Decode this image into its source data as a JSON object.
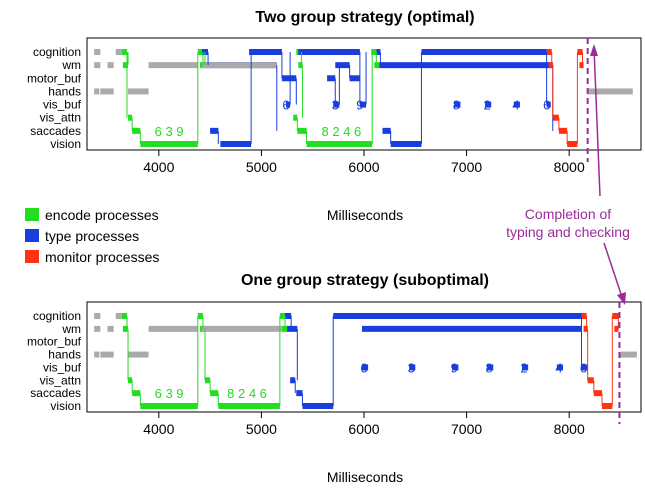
{
  "chart_data": [
    {
      "type": "timeline",
      "title": "Two group strategy (optimal)",
      "xlabel": "Milliseconds",
      "xlim": [
        3300,
        8700
      ],
      "xticks": [
        4000,
        5000,
        6000,
        7000,
        8000
      ],
      "lanes": [
        "cognition",
        "wm",
        "motor_buf",
        "hands",
        "vis_buf",
        "vis_attn",
        "saccades",
        "vision"
      ],
      "series": [
        {
          "name": "encode processes",
          "color": "#22dd22",
          "segments": [
            {
              "lane": "wm",
              "x": [
                3650,
                3700
              ]
            },
            {
              "lane": "cognition",
              "x": [
                3640,
                3690
              ]
            },
            {
              "lane": "vis_attn",
              "x": [
                3700,
                3740
              ]
            },
            {
              "lane": "saccades",
              "x": [
                3740,
                3820
              ]
            },
            {
              "lane": "vision",
              "x": [
                3820,
                4380
              ]
            },
            {
              "lane": "cognition",
              "x": [
                4380,
                4430
              ]
            },
            {
              "lane": "wm",
              "x": [
                4400,
                4450
              ]
            },
            {
              "lane": "cognition",
              "x": [
                5340,
                5390
              ]
            },
            {
              "lane": "wm",
              "x": [
                5360,
                5400
              ]
            },
            {
              "lane": "vis_attn",
              "x": [
                5310,
                5350
              ]
            },
            {
              "lane": "saccades",
              "x": [
                5350,
                5440
              ]
            },
            {
              "lane": "vision",
              "x": [
                5440,
                6080
              ]
            },
            {
              "lane": "cognition",
              "x": [
                6070,
                6120
              ]
            },
            {
              "lane": "wm",
              "x": [
                6100,
                6150
              ]
            }
          ]
        },
        {
          "name": "type processes",
          "color": "#1a3ddd",
          "segments": [
            {
              "lane": "cognition",
              "x": [
                4420,
                4480
              ]
            },
            {
              "lane": "wm",
              "x": [
                4450,
                5150
              ]
            },
            {
              "lane": "saccades",
              "x": [
                4500,
                4580
              ]
            },
            {
              "lane": "vision",
              "x": [
                4600,
                4900
              ]
            },
            {
              "lane": "cognition",
              "x": [
                4880,
                5200
              ]
            },
            {
              "lane": "motor_buf",
              "x": [
                5200,
                5340
              ]
            },
            {
              "lane": "vis_buf",
              "x": [
                5240,
                5280
              ]
            },
            {
              "lane": "cognition",
              "x": [
                5360,
                5960
              ]
            },
            {
              "lane": "motor_buf",
              "x": [
                5640,
                5720
              ]
            },
            {
              "lane": "vis_buf",
              "x": [
                5700,
                5760
              ]
            },
            {
              "lane": "wm",
              "x": [
                5720,
                5860
              ]
            },
            {
              "lane": "motor_buf",
              "x": [
                5860,
                5960
              ]
            },
            {
              "lane": "vis_buf",
              "x": [
                5960,
                6020
              ]
            },
            {
              "lane": "cognition",
              "x": [
                6120,
                6160
              ]
            },
            {
              "lane": "wm",
              "x": [
                6150,
                7840
              ]
            },
            {
              "lane": "saccades",
              "x": [
                6180,
                6260
              ]
            },
            {
              "lane": "vision",
              "x": [
                6260,
                6560
              ]
            },
            {
              "lane": "cognition",
              "x": [
                6560,
                7780
              ]
            },
            {
              "lane": "vis_buf",
              "x": [
                6880,
                6940
              ]
            },
            {
              "lane": "vis_buf",
              "x": [
                7180,
                7240
              ]
            },
            {
              "lane": "vis_buf",
              "x": [
                7460,
                7520
              ]
            },
            {
              "lane": "vis_buf",
              "x": [
                7780,
                7820
              ]
            }
          ]
        },
        {
          "name": "monitor processes",
          "color": "#ff3311",
          "segments": [
            {
              "lane": "cognition",
              "x": [
                7780,
                7830
              ]
            },
            {
              "lane": "wm",
              "x": [
                7800,
                7840
              ]
            },
            {
              "lane": "vis_attn",
              "x": [
                7840,
                7900
              ]
            },
            {
              "lane": "saccades",
              "x": [
                7900,
                7980
              ]
            },
            {
              "lane": "vision",
              "x": [
                7980,
                8080
              ]
            },
            {
              "lane": "cognition",
              "x": [
                8080,
                8130
              ]
            },
            {
              "lane": "wm",
              "x": [
                8100,
                8140
              ]
            }
          ]
        },
        {
          "name": "gray",
          "color": "#aaaaaa",
          "segments": [
            {
              "lane": "cognition",
              "x": [
                3370,
                3430
              ]
            },
            {
              "lane": "wm",
              "x": [
                3370,
                3430
              ]
            },
            {
              "lane": "hands",
              "x": [
                3370,
                3420
              ]
            },
            {
              "lane": "wm",
              "x": [
                3500,
                3560
              ]
            },
            {
              "lane": "hands",
              "x": [
                3430,
                3560
              ]
            },
            {
              "lane": "cognition",
              "x": [
                3580,
                3640
              ]
            },
            {
              "lane": "hands",
              "x": [
                3700,
                3900
              ]
            },
            {
              "lane": "wm",
              "x": [
                3900,
                4380
              ]
            },
            {
              "lane": "wm",
              "x": [
                4420,
                5150
              ]
            },
            {
              "lane": "hands",
              "x": [
                8180,
                8620
              ]
            }
          ]
        }
      ],
      "digit_labels": [
        {
          "text": "6 3 9",
          "x": 4100,
          "lane": "saccades",
          "color": "#22dd22"
        },
        {
          "text": "8 2 4 6",
          "x": 5780,
          "lane": "saccades",
          "color": "#22dd22"
        },
        {
          "text": "6",
          "x": 5240,
          "lane": "vis_buf",
          "color": "#1a3ddd"
        },
        {
          "text": "3",
          "x": 5720,
          "lane": "vis_buf",
          "color": "#1a3ddd"
        },
        {
          "text": "9",
          "x": 5960,
          "lane": "vis_buf",
          "color": "#1a3ddd"
        },
        {
          "text": "8",
          "x": 6900,
          "lane": "vis_buf",
          "color": "#1a3ddd"
        },
        {
          "text": "2",
          "x": 7200,
          "lane": "vis_buf",
          "color": "#1a3ddd"
        },
        {
          "text": "4",
          "x": 7480,
          "lane": "vis_buf",
          "color": "#1a3ddd"
        },
        {
          "text": "6",
          "x": 7780,
          "lane": "vis_buf",
          "color": "#1a3ddd"
        }
      ],
      "completion_x": 8180
    },
    {
      "type": "timeline",
      "title": "One group strategy (suboptimal)",
      "xlabel": "Milliseconds",
      "xlim": [
        3300,
        8700
      ],
      "xticks": [
        4000,
        5000,
        6000,
        7000,
        8000
      ],
      "lanes": [
        "cognition",
        "wm",
        "motor_buf",
        "hands",
        "vis_buf",
        "vis_attn",
        "saccades",
        "vision"
      ],
      "series": [
        {
          "name": "encode processes",
          "color": "#22dd22",
          "segments": [
            {
              "lane": "cognition",
              "x": [
                3640,
                3690
              ]
            },
            {
              "lane": "wm",
              "x": [
                3650,
                3700
              ]
            },
            {
              "lane": "vis_attn",
              "x": [
                3700,
                3740
              ]
            },
            {
              "lane": "saccades",
              "x": [
                3740,
                3820
              ]
            },
            {
              "lane": "vision",
              "x": [
                3820,
                4380
              ]
            },
            {
              "lane": "cognition",
              "x": [
                4380,
                4430
              ]
            },
            {
              "lane": "wm",
              "x": [
                4400,
                4450
              ]
            },
            {
              "lane": "vis_attn",
              "x": [
                4450,
                4500
              ]
            },
            {
              "lane": "saccades",
              "x": [
                4500,
                4580
              ]
            },
            {
              "lane": "vision",
              "x": [
                4580,
                5180
              ]
            },
            {
              "lane": "cognition",
              "x": [
                5180,
                5230
              ]
            },
            {
              "lane": "wm",
              "x": [
                5200,
                5250
              ]
            }
          ]
        },
        {
          "name": "type processes",
          "color": "#1a3ddd",
          "segments": [
            {
              "lane": "cognition",
              "x": [
                5230,
                5290
              ]
            },
            {
              "lane": "wm",
              "x": [
                5250,
                5350
              ]
            },
            {
              "lane": "vis_attn",
              "x": [
                5280,
                5330
              ]
            },
            {
              "lane": "saccades",
              "x": [
                5340,
                5400
              ]
            },
            {
              "lane": "vision",
              "x": [
                5400,
                5700
              ]
            },
            {
              "lane": "cognition",
              "x": [
                5700,
                8120
              ]
            },
            {
              "lane": "wm",
              "x": [
                5980,
                8120
              ]
            },
            {
              "lane": "vis_buf",
              "x": [
                5980,
                6040
              ]
            },
            {
              "lane": "vis_buf",
              "x": [
                6440,
                6500
              ]
            },
            {
              "lane": "vis_buf",
              "x": [
                6860,
                6920
              ]
            },
            {
              "lane": "vis_buf",
              "x": [
                7200,
                7260
              ]
            },
            {
              "lane": "vis_buf",
              "x": [
                7540,
                7600
              ]
            },
            {
              "lane": "vis_buf",
              "x": [
                7880,
                7940
              ]
            },
            {
              "lane": "vis_buf",
              "x": [
                8120,
                8180
              ]
            }
          ]
        },
        {
          "name": "monitor processes",
          "color": "#ff3311",
          "segments": [
            {
              "lane": "cognition",
              "x": [
                8120,
                8170
              ]
            },
            {
              "lane": "wm",
              "x": [
                8140,
                8180
              ]
            },
            {
              "lane": "vis_attn",
              "x": [
                8180,
                8240
              ]
            },
            {
              "lane": "saccades",
              "x": [
                8240,
                8320
              ]
            },
            {
              "lane": "vision",
              "x": [
                8320,
                8420
              ]
            },
            {
              "lane": "cognition",
              "x": [
                8420,
                8480
              ]
            },
            {
              "lane": "wm",
              "x": [
                8440,
                8480
              ]
            }
          ]
        },
        {
          "name": "gray",
          "color": "#aaaaaa",
          "segments": [
            {
              "lane": "cognition",
              "x": [
                3370,
                3430
              ]
            },
            {
              "lane": "wm",
              "x": [
                3370,
                3430
              ]
            },
            {
              "lane": "hands",
              "x": [
                3370,
                3420
              ]
            },
            {
              "lane": "wm",
              "x": [
                3500,
                3560
              ]
            },
            {
              "lane": "hands",
              "x": [
                3430,
                3560
              ]
            },
            {
              "lane": "cognition",
              "x": [
                3580,
                3640
              ]
            },
            {
              "lane": "hands",
              "x": [
                3700,
                3900
              ]
            },
            {
              "lane": "wm",
              "x": [
                3900,
                4380
              ]
            },
            {
              "lane": "wm",
              "x": [
                4420,
                5200
              ]
            },
            {
              "lane": "hands",
              "x": [
                8500,
                8660
              ]
            }
          ]
        }
      ],
      "digit_labels": [
        {
          "text": "6 3 9",
          "x": 4100,
          "lane": "saccades",
          "color": "#22dd22"
        },
        {
          "text": "8 2 4 6",
          "x": 4860,
          "lane": "saccades",
          "color": "#22dd22"
        },
        {
          "text": "6",
          "x": 6000,
          "lane": "vis_buf",
          "color": "#1a3ddd"
        },
        {
          "text": "3",
          "x": 6460,
          "lane": "vis_buf",
          "color": "#1a3ddd"
        },
        {
          "text": "9",
          "x": 6880,
          "lane": "vis_buf",
          "color": "#1a3ddd"
        },
        {
          "text": "8",
          "x": 7220,
          "lane": "vis_buf",
          "color": "#1a3ddd"
        },
        {
          "text": "2",
          "x": 7560,
          "lane": "vis_buf",
          "color": "#1a3ddd"
        },
        {
          "text": "4",
          "x": 7900,
          "lane": "vis_buf",
          "color": "#1a3ddd"
        },
        {
          "text": "6",
          "x": 8140,
          "lane": "vis_buf",
          "color": "#1a3ddd"
        }
      ],
      "completion_x": 8490
    }
  ],
  "legend": [
    {
      "label": "encode processes",
      "color": "#22dd22"
    },
    {
      "label": "type processes",
      "color": "#1a3ddd"
    },
    {
      "label": "monitor processes",
      "color": "#ff3311"
    }
  ],
  "annotation": {
    "line1": "Completion of",
    "line2": "typing and checking",
    "color": "#9b2a9b"
  }
}
